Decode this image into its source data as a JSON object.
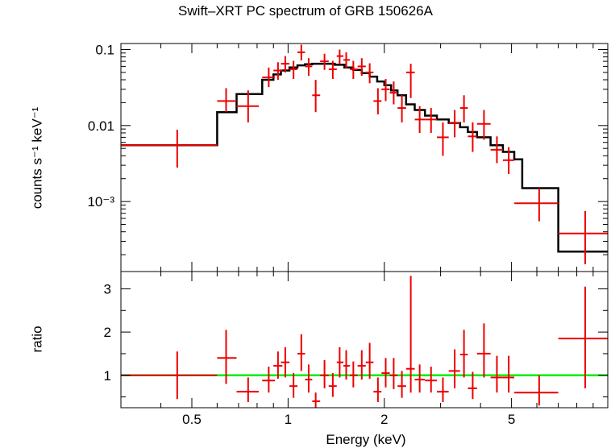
{
  "chart_data": [
    {
      "panel": "spectrum",
      "type": "scatter",
      "title": "Swift–XRT PC spectrum of GRB 150626A",
      "xlabel": "Energy (keV)",
      "ylabel": "counts s⁻¹ keV⁻¹",
      "xscale": "log",
      "yscale": "log",
      "xlim": [
        0.3,
        10
      ],
      "ylim": [
        0.00012,
        0.12
      ],
      "y_ticks": [
        {
          "value": 0.1,
          "label": "0.1"
        },
        {
          "value": 0.01,
          "label": "0.01"
        },
        {
          "value": 0.001,
          "label": "10⁻³"
        }
      ],
      "colors": {
        "data": "#ee0000",
        "model": "#000000"
      },
      "data_points": [
        {
          "x": 0.45,
          "xlo": 0.3,
          "xhi": 0.6,
          "y": 0.0055,
          "ylo": 0.0028,
          "yhi": 0.0088
        },
        {
          "x": 0.64,
          "xlo": 0.6,
          "xhi": 0.69,
          "y": 0.021,
          "ylo": 0.015,
          "yhi": 0.031
        },
        {
          "x": 0.75,
          "xlo": 0.69,
          "xhi": 0.81,
          "y": 0.018,
          "ylo": 0.011,
          "yhi": 0.029
        },
        {
          "x": 0.87,
          "xlo": 0.83,
          "xhi": 0.91,
          "y": 0.043,
          "ylo": 0.032,
          "yhi": 0.058
        },
        {
          "x": 0.93,
          "xlo": 0.9,
          "xhi": 0.96,
          "y": 0.053,
          "ylo": 0.04,
          "yhi": 0.068
        },
        {
          "x": 0.98,
          "xlo": 0.95,
          "xhi": 1.01,
          "y": 0.065,
          "ylo": 0.05,
          "yhi": 0.082
        },
        {
          "x": 1.04,
          "xlo": 1.01,
          "xhi": 1.07,
          "y": 0.055,
          "ylo": 0.041,
          "yhi": 0.071
        },
        {
          "x": 1.1,
          "xlo": 1.07,
          "xhi": 1.13,
          "y": 0.092,
          "ylo": 0.072,
          "yhi": 0.116
        },
        {
          "x": 1.16,
          "xlo": 1.13,
          "xhi": 1.19,
          "y": 0.06,
          "ylo": 0.045,
          "yhi": 0.077
        },
        {
          "x": 1.22,
          "xlo": 1.19,
          "xhi": 1.26,
          "y": 0.025,
          "ylo": 0.015,
          "yhi": 0.04
        },
        {
          "x": 1.3,
          "xlo": 1.26,
          "xhi": 1.34,
          "y": 0.07,
          "ylo": 0.054,
          "yhi": 0.088
        },
        {
          "x": 1.38,
          "xlo": 1.34,
          "xhi": 1.42,
          "y": 0.055,
          "ylo": 0.041,
          "yhi": 0.071
        },
        {
          "x": 1.45,
          "xlo": 1.42,
          "xhi": 1.49,
          "y": 0.082,
          "ylo": 0.064,
          "yhi": 0.1
        },
        {
          "x": 1.52,
          "xlo": 1.49,
          "xhi": 1.56,
          "y": 0.073,
          "ylo": 0.056,
          "yhi": 0.092
        },
        {
          "x": 1.6,
          "xlo": 1.56,
          "xhi": 1.65,
          "y": 0.055,
          "ylo": 0.041,
          "yhi": 0.071
        },
        {
          "x": 1.7,
          "xlo": 1.65,
          "xhi": 1.75,
          "y": 0.06,
          "ylo": 0.045,
          "yhi": 0.077
        },
        {
          "x": 1.8,
          "xlo": 1.75,
          "xhi": 1.85,
          "y": 0.05,
          "ylo": 0.036,
          "yhi": 0.066
        },
        {
          "x": 1.91,
          "xlo": 1.85,
          "xhi": 1.96,
          "y": 0.021,
          "ylo": 0.014,
          "yhi": 0.031
        },
        {
          "x": 2.02,
          "xlo": 1.96,
          "xhi": 2.08,
          "y": 0.03,
          "ylo": 0.021,
          "yhi": 0.041
        },
        {
          "x": 2.14,
          "xlo": 2.08,
          "xhi": 2.2,
          "y": 0.027,
          "ylo": 0.019,
          "yhi": 0.038
        },
        {
          "x": 2.27,
          "xlo": 2.2,
          "xhi": 2.34,
          "y": 0.017,
          "ylo": 0.011,
          "yhi": 0.025
        },
        {
          "x": 2.42,
          "xlo": 2.34,
          "xhi": 2.49,
          "y": 0.05,
          "ylo": 0.023,
          "yhi": 0.065
        },
        {
          "x": 2.58,
          "xlo": 2.49,
          "xhi": 2.68,
          "y": 0.012,
          "ylo": 0.008,
          "yhi": 0.018
        },
        {
          "x": 2.8,
          "xlo": 2.68,
          "xhi": 2.92,
          "y": 0.012,
          "ylo": 0.008,
          "yhi": 0.017
        },
        {
          "x": 3.05,
          "xlo": 2.92,
          "xhi": 3.18,
          "y": 0.007,
          "ylo": 0.004,
          "yhi": 0.011
        },
        {
          "x": 3.32,
          "xlo": 3.18,
          "xhi": 3.45,
          "y": 0.0108,
          "ylo": 0.007,
          "yhi": 0.016
        },
        {
          "x": 3.55,
          "xlo": 3.45,
          "xhi": 3.65,
          "y": 0.017,
          "ylo": 0.011,
          "yhi": 0.025
        },
        {
          "x": 3.78,
          "xlo": 3.65,
          "xhi": 3.9,
          "y": 0.0072,
          "ylo": 0.0045,
          "yhi": 0.011
        },
        {
          "x": 4.1,
          "xlo": 3.9,
          "xhi": 4.3,
          "y": 0.0105,
          "ylo": 0.0065,
          "yhi": 0.016
        },
        {
          "x": 4.5,
          "xlo": 4.3,
          "xhi": 4.7,
          "y": 0.0048,
          "ylo": 0.0032,
          "yhi": 0.0072
        },
        {
          "x": 4.9,
          "xlo": 4.7,
          "xhi": 5.1,
          "y": 0.0035,
          "ylo": 0.0023,
          "yhi": 0.0052
        },
        {
          "x": 6.1,
          "xlo": 5.1,
          "xhi": 7.0,
          "y": 0.00095,
          "ylo": 0.00055,
          "yhi": 0.0015
        },
        {
          "x": 8.5,
          "xlo": 7.0,
          "xhi": 10.0,
          "y": 0.00038,
          "ylo": 0.00015,
          "yhi": 0.00075
        }
      ],
      "model_steps": [
        {
          "x": 0.3,
          "y": 0.0055
        },
        {
          "x": 0.6,
          "y": 0.015
        },
        {
          "x": 0.69,
          "y": 0.026
        },
        {
          "x": 0.83,
          "y": 0.04
        },
        {
          "x": 0.9,
          "y": 0.047
        },
        {
          "x": 0.95,
          "y": 0.053
        },
        {
          "x": 1.01,
          "y": 0.058
        },
        {
          "x": 1.07,
          "y": 0.062
        },
        {
          "x": 1.13,
          "y": 0.064
        },
        {
          "x": 1.19,
          "y": 0.065
        },
        {
          "x": 1.4,
          "y": 0.063
        },
        {
          "x": 1.5,
          "y": 0.058
        },
        {
          "x": 1.6,
          "y": 0.054
        },
        {
          "x": 1.7,
          "y": 0.049
        },
        {
          "x": 1.8,
          "y": 0.044
        },
        {
          "x": 1.9,
          "y": 0.038
        },
        {
          "x": 2.0,
          "y": 0.034
        },
        {
          "x": 2.1,
          "y": 0.029
        },
        {
          "x": 2.2,
          "y": 0.025
        },
        {
          "x": 2.34,
          "y": 0.019
        },
        {
          "x": 2.49,
          "y": 0.016
        },
        {
          "x": 2.68,
          "y": 0.0135
        },
        {
          "x": 2.92,
          "y": 0.012
        },
        {
          "x": 3.18,
          "y": 0.0108
        },
        {
          "x": 3.45,
          "y": 0.0095
        },
        {
          "x": 3.65,
          "y": 0.0082
        },
        {
          "x": 3.9,
          "y": 0.007
        },
        {
          "x": 4.3,
          "y": 0.0055
        },
        {
          "x": 4.7,
          "y": 0.0045
        },
        {
          "x": 5.1,
          "y": 0.0036
        },
        {
          "x": 5.4,
          "y": 0.0015
        },
        {
          "x": 7.0,
          "y": 0.00022
        },
        {
          "x": 10.0,
          "y": 0.00022
        }
      ]
    },
    {
      "panel": "ratio",
      "type": "scatter",
      "xlabel": "Energy (keV)",
      "ylabel": "ratio",
      "xscale": "log",
      "yscale": "linear",
      "xlim": [
        0.3,
        10
      ],
      "ylim": [
        0.25,
        3.4
      ],
      "x_ticks": [
        {
          "value": 0.5,
          "label": "0.5"
        },
        {
          "value": 1,
          "label": "1"
        },
        {
          "value": 2,
          "label": "2"
        },
        {
          "value": 5,
          "label": "5"
        }
      ],
      "y_ticks": [
        {
          "value": 1,
          "label": "1"
        },
        {
          "value": 2,
          "label": "2"
        },
        {
          "value": 3,
          "label": "3"
        }
      ],
      "reference_line": 1,
      "colors": {
        "data": "#ee0000",
        "reference": "#00ee00"
      },
      "data_points": [
        {
          "x": 0.45,
          "xlo": 0.3,
          "xhi": 0.6,
          "y": 1.0,
          "ylo": 0.45,
          "yhi": 1.55
        },
        {
          "x": 0.64,
          "xlo": 0.6,
          "xhi": 0.69,
          "y": 1.4,
          "ylo": 0.8,
          "yhi": 2.05
        },
        {
          "x": 0.75,
          "xlo": 0.69,
          "xhi": 0.81,
          "y": 0.62,
          "ylo": 0.38,
          "yhi": 0.95
        },
        {
          "x": 0.87,
          "xlo": 0.83,
          "xhi": 0.91,
          "y": 0.88,
          "ylo": 0.6,
          "yhi": 1.2
        },
        {
          "x": 0.93,
          "xlo": 0.9,
          "xhi": 0.96,
          "y": 1.22,
          "ylo": 0.92,
          "yhi": 1.55
        },
        {
          "x": 0.98,
          "xlo": 0.95,
          "xhi": 1.01,
          "y": 1.3,
          "ylo": 0.95,
          "yhi": 1.65
        },
        {
          "x": 1.04,
          "xlo": 1.01,
          "xhi": 1.07,
          "y": 0.75,
          "ylo": 0.48,
          "yhi": 1.05
        },
        {
          "x": 1.1,
          "xlo": 1.07,
          "xhi": 1.13,
          "y": 1.5,
          "ylo": 1.1,
          "yhi": 1.95
        },
        {
          "x": 1.16,
          "xlo": 1.13,
          "xhi": 1.19,
          "y": 0.9,
          "ylo": 0.6,
          "yhi": 1.25
        },
        {
          "x": 1.22,
          "xlo": 1.19,
          "xhi": 1.26,
          "y": 0.4,
          "ylo": 0.25,
          "yhi": 0.6
        },
        {
          "x": 1.3,
          "xlo": 1.26,
          "xhi": 1.34,
          "y": 1.0,
          "ylo": 0.7,
          "yhi": 1.35
        },
        {
          "x": 1.38,
          "xlo": 1.34,
          "xhi": 1.42,
          "y": 0.75,
          "ylo": 0.5,
          "yhi": 1.05
        },
        {
          "x": 1.45,
          "xlo": 1.42,
          "xhi": 1.49,
          "y": 1.3,
          "ylo": 0.95,
          "yhi": 1.65
        },
        {
          "x": 1.52,
          "xlo": 1.49,
          "xhi": 1.56,
          "y": 1.22,
          "ylo": 0.9,
          "yhi": 1.58
        },
        {
          "x": 1.6,
          "xlo": 1.56,
          "xhi": 1.65,
          "y": 1.0,
          "ylo": 0.72,
          "yhi": 1.32
        },
        {
          "x": 1.7,
          "xlo": 1.65,
          "xhi": 1.75,
          "y": 1.22,
          "ylo": 0.9,
          "yhi": 1.58
        },
        {
          "x": 1.8,
          "xlo": 1.75,
          "xhi": 1.85,
          "y": 1.3,
          "ylo": 0.92,
          "yhi": 1.75
        },
        {
          "x": 1.91,
          "xlo": 1.85,
          "xhi": 1.96,
          "y": 0.62,
          "ylo": 0.38,
          "yhi": 0.95
        },
        {
          "x": 2.02,
          "xlo": 1.96,
          "xhi": 2.08,
          "y": 1.05,
          "ylo": 0.72,
          "yhi": 1.4
        },
        {
          "x": 2.14,
          "xlo": 2.08,
          "xhi": 2.2,
          "y": 1.0,
          "ylo": 0.68,
          "yhi": 1.4
        },
        {
          "x": 2.27,
          "xlo": 2.2,
          "xhi": 2.34,
          "y": 0.75,
          "ylo": 0.48,
          "yhi": 1.1
        },
        {
          "x": 2.42,
          "xlo": 2.34,
          "xhi": 2.49,
          "y": 1.15,
          "ylo": 0.6,
          "yhi": 3.3
        },
        {
          "x": 2.58,
          "xlo": 2.49,
          "xhi": 2.68,
          "y": 0.9,
          "ylo": 0.6,
          "yhi": 1.25
        },
        {
          "x": 2.8,
          "xlo": 2.68,
          "xhi": 2.92,
          "y": 0.88,
          "ylo": 0.6,
          "yhi": 1.2
        },
        {
          "x": 3.05,
          "xlo": 2.92,
          "xhi": 3.18,
          "y": 0.62,
          "ylo": 0.38,
          "yhi": 0.95
        },
        {
          "x": 3.32,
          "xlo": 3.18,
          "xhi": 3.45,
          "y": 1.1,
          "ylo": 0.7,
          "yhi": 1.6
        },
        {
          "x": 3.55,
          "xlo": 3.45,
          "xhi": 3.65,
          "y": 1.48,
          "ylo": 0.95,
          "yhi": 2.05
        },
        {
          "x": 3.78,
          "xlo": 3.65,
          "xhi": 3.9,
          "y": 0.7,
          "ylo": 0.45,
          "yhi": 1.08
        },
        {
          "x": 4.1,
          "xlo": 3.9,
          "xhi": 4.3,
          "y": 1.5,
          "ylo": 0.95,
          "yhi": 2.2
        },
        {
          "x": 4.5,
          "xlo": 4.3,
          "xhi": 4.7,
          "y": 0.95,
          "ylo": 0.6,
          "yhi": 1.45
        },
        {
          "x": 4.9,
          "xlo": 4.7,
          "xhi": 5.1,
          "y": 0.95,
          "ylo": 0.6,
          "yhi": 1.45
        },
        {
          "x": 6.1,
          "xlo": 5.1,
          "xhi": 7.0,
          "y": 0.6,
          "ylo": 0.3,
          "yhi": 1.0
        },
        {
          "x": 8.5,
          "xlo": 7.0,
          "xhi": 10.0,
          "y": 1.85,
          "ylo": 0.7,
          "yhi": 3.05
        }
      ]
    }
  ]
}
